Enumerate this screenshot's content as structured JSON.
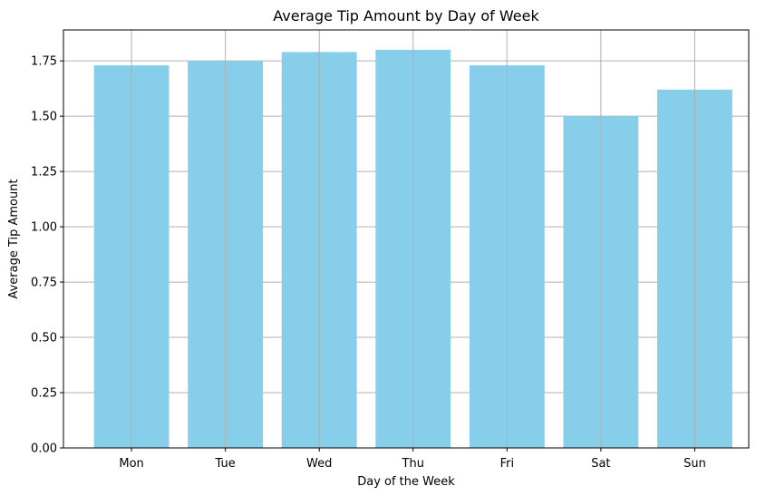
{
  "chart_data": {
    "type": "bar",
    "title": "Average Tip Amount by Day of Week",
    "xlabel": "Day of the Week",
    "ylabel": "Average Tip Amount",
    "categories": [
      "Mon",
      "Tue",
      "Wed",
      "Thu",
      "Fri",
      "Sat",
      "Sun"
    ],
    "values": [
      1.73,
      1.75,
      1.79,
      1.8,
      1.73,
      1.5,
      1.62
    ],
    "ylim": [
      0,
      1.89
    ],
    "yticks": [
      "0.00",
      "0.25",
      "0.50",
      "0.75",
      "1.00",
      "1.25",
      "1.50",
      "1.75"
    ],
    "grid": true,
    "bar_color": "#87CEEB",
    "grid_color": "#b0b0b0"
  }
}
